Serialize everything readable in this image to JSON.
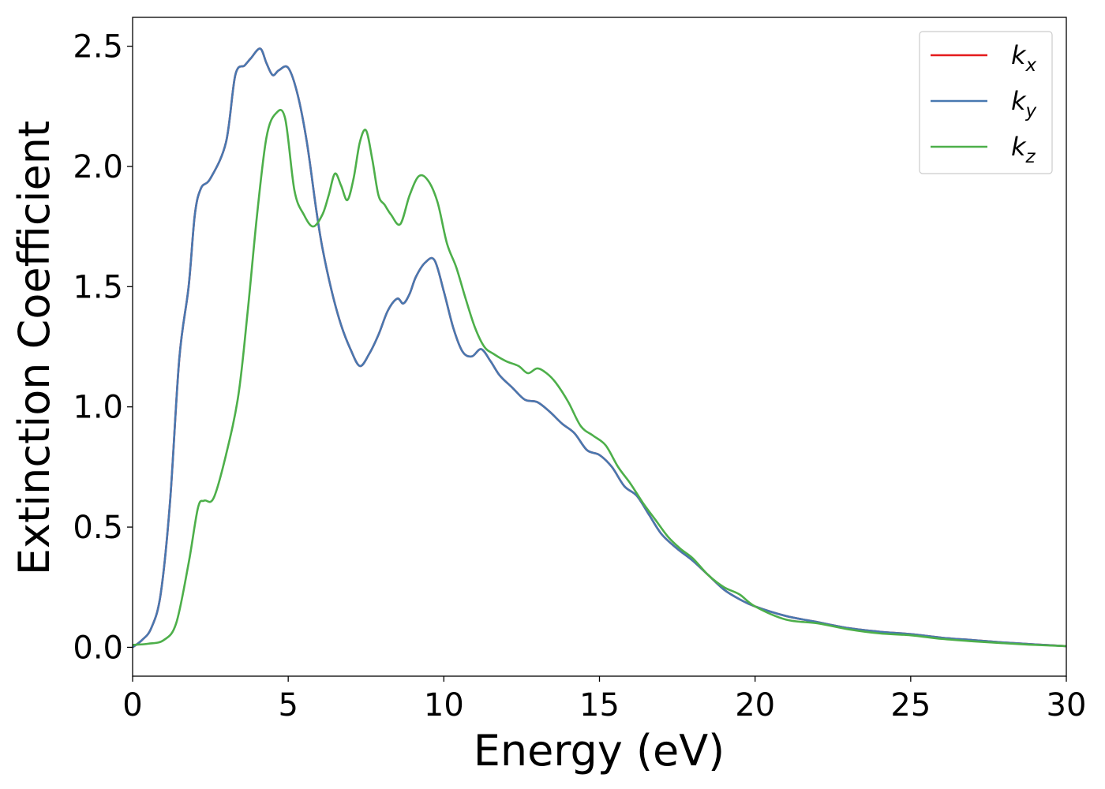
{
  "chart_data": {
    "type": "line",
    "title": "",
    "xlabel": "Energy (eV)",
    "ylabel": "Extinction Coefficient",
    "xlim": [
      0,
      30
    ],
    "ylim": [
      -0.12,
      2.62
    ],
    "xticks": [
      0,
      5,
      10,
      15,
      20,
      25,
      30
    ],
    "xtick_labels": [
      "0",
      "5",
      "10",
      "15",
      "20",
      "25",
      "30"
    ],
    "yticks": [
      0.0,
      0.5,
      1.0,
      1.5,
      2.0,
      2.5
    ],
    "ytick_labels": [
      "0.0",
      "0.5",
      "1.0",
      "1.5",
      "2.0",
      "2.5"
    ],
    "grid": false,
    "legend_position": "top-right",
    "series": [
      {
        "name": "k_x",
        "label_main": "k",
        "label_sub": "x",
        "color": "#e41a1c",
        "x": [
          0,
          0.3,
          0.6,
          0.9,
          1.2,
          1.5,
          1.8,
          2.0,
          2.2,
          2.5,
          3.0,
          3.3,
          3.6,
          3.8,
          4.1,
          4.3,
          4.5,
          4.7,
          5.0,
          5.3,
          5.6,
          5.9,
          6.1,
          6.4,
          6.7,
          7.0,
          7.3,
          7.6,
          7.9,
          8.2,
          8.5,
          8.7,
          8.9,
          9.1,
          9.4,
          9.7,
          10.0,
          10.3,
          10.6,
          10.9,
          11.2,
          11.5,
          11.8,
          12.2,
          12.6,
          13.0,
          13.4,
          13.8,
          14.2,
          14.6,
          15.0,
          15.4,
          15.8,
          16.2,
          16.6,
          17.0,
          17.5,
          18.0,
          18.5,
          19.0,
          19.5,
          20,
          21,
          22,
          23,
          24,
          25,
          26,
          27,
          28,
          29,
          30
        ],
        "y": [
          0.0,
          0.03,
          0.08,
          0.22,
          0.6,
          1.2,
          1.5,
          1.8,
          1.91,
          1.95,
          2.1,
          2.38,
          2.42,
          2.45,
          2.49,
          2.43,
          2.38,
          2.4,
          2.41,
          2.3,
          2.1,
          1.82,
          1.66,
          1.48,
          1.34,
          1.24,
          1.17,
          1.22,
          1.3,
          1.4,
          1.45,
          1.43,
          1.47,
          1.54,
          1.6,
          1.61,
          1.48,
          1.33,
          1.23,
          1.21,
          1.24,
          1.19,
          1.13,
          1.08,
          1.03,
          1.02,
          0.98,
          0.93,
          0.89,
          0.82,
          0.8,
          0.75,
          0.67,
          0.63,
          0.55,
          0.47,
          0.41,
          0.36,
          0.3,
          0.24,
          0.2,
          0.17,
          0.13,
          0.105,
          0.08,
          0.065,
          0.055,
          0.04,
          0.03,
          0.02,
          0.012,
          0.005
        ]
      },
      {
        "name": "k_y",
        "label_main": "k",
        "label_sub": "y",
        "color": "#4878b0",
        "x": [
          0,
          0.3,
          0.6,
          0.9,
          1.2,
          1.5,
          1.8,
          2.0,
          2.2,
          2.5,
          3.0,
          3.3,
          3.6,
          3.8,
          4.1,
          4.3,
          4.5,
          4.7,
          5.0,
          5.3,
          5.6,
          5.9,
          6.1,
          6.4,
          6.7,
          7.0,
          7.3,
          7.6,
          7.9,
          8.2,
          8.5,
          8.7,
          8.9,
          9.1,
          9.4,
          9.7,
          10.0,
          10.3,
          10.6,
          10.9,
          11.2,
          11.5,
          11.8,
          12.2,
          12.6,
          13.0,
          13.4,
          13.8,
          14.2,
          14.6,
          15.0,
          15.4,
          15.8,
          16.2,
          16.6,
          17.0,
          17.5,
          18.0,
          18.5,
          19.0,
          19.5,
          20,
          21,
          22,
          23,
          24,
          25,
          26,
          27,
          28,
          29,
          30
        ],
        "y": [
          0.0,
          0.03,
          0.08,
          0.22,
          0.6,
          1.2,
          1.5,
          1.8,
          1.91,
          1.95,
          2.1,
          2.38,
          2.42,
          2.45,
          2.49,
          2.43,
          2.38,
          2.4,
          2.41,
          2.3,
          2.1,
          1.82,
          1.66,
          1.48,
          1.34,
          1.24,
          1.17,
          1.22,
          1.3,
          1.4,
          1.45,
          1.43,
          1.47,
          1.54,
          1.6,
          1.61,
          1.48,
          1.33,
          1.23,
          1.21,
          1.24,
          1.19,
          1.13,
          1.08,
          1.03,
          1.02,
          0.98,
          0.93,
          0.89,
          0.82,
          0.8,
          0.75,
          0.67,
          0.63,
          0.55,
          0.47,
          0.41,
          0.36,
          0.3,
          0.24,
          0.2,
          0.17,
          0.13,
          0.105,
          0.08,
          0.065,
          0.055,
          0.04,
          0.03,
          0.02,
          0.012,
          0.005
        ]
      },
      {
        "name": "k_z",
        "label_main": "k",
        "label_sub": "z",
        "color": "#4daf4a",
        "x": [
          0,
          0.5,
          1.0,
          1.4,
          1.8,
          2.1,
          2.3,
          2.6,
          3.0,
          3.4,
          3.7,
          4.0,
          4.3,
          4.6,
          4.9,
          5.2,
          5.5,
          5.8,
          6.1,
          6.3,
          6.5,
          6.7,
          6.9,
          7.1,
          7.3,
          7.5,
          7.7,
          7.9,
          8.1,
          8.3,
          8.6,
          8.9,
          9.2,
          9.5,
          9.8,
          10.1,
          10.4,
          10.7,
          11.0,
          11.3,
          11.6,
          12.0,
          12.4,
          12.7,
          13.0,
          13.3,
          13.6,
          14.0,
          14.4,
          14.8,
          15.2,
          15.6,
          16.0,
          16.4,
          16.8,
          17.2,
          17.6,
          18.0,
          18.5,
          19.0,
          19.5,
          20,
          21,
          22,
          23,
          24,
          25,
          26,
          27,
          28,
          29,
          30
        ],
        "y": [
          0.01,
          0.015,
          0.03,
          0.1,
          0.35,
          0.58,
          0.61,
          0.62,
          0.8,
          1.05,
          1.4,
          1.8,
          2.12,
          2.22,
          2.2,
          1.9,
          1.8,
          1.75,
          1.8,
          1.88,
          1.97,
          1.92,
          1.86,
          1.95,
          2.1,
          2.15,
          2.03,
          1.88,
          1.84,
          1.8,
          1.76,
          1.88,
          1.96,
          1.94,
          1.85,
          1.68,
          1.58,
          1.45,
          1.33,
          1.25,
          1.22,
          1.19,
          1.17,
          1.14,
          1.16,
          1.14,
          1.1,
          1.02,
          0.92,
          0.88,
          0.84,
          0.75,
          0.68,
          0.6,
          0.53,
          0.46,
          0.41,
          0.37,
          0.3,
          0.25,
          0.22,
          0.17,
          0.115,
          0.1,
          0.075,
          0.058,
          0.05,
          0.035,
          0.025,
          0.017,
          0.01,
          0.005
        ]
      }
    ]
  }
}
